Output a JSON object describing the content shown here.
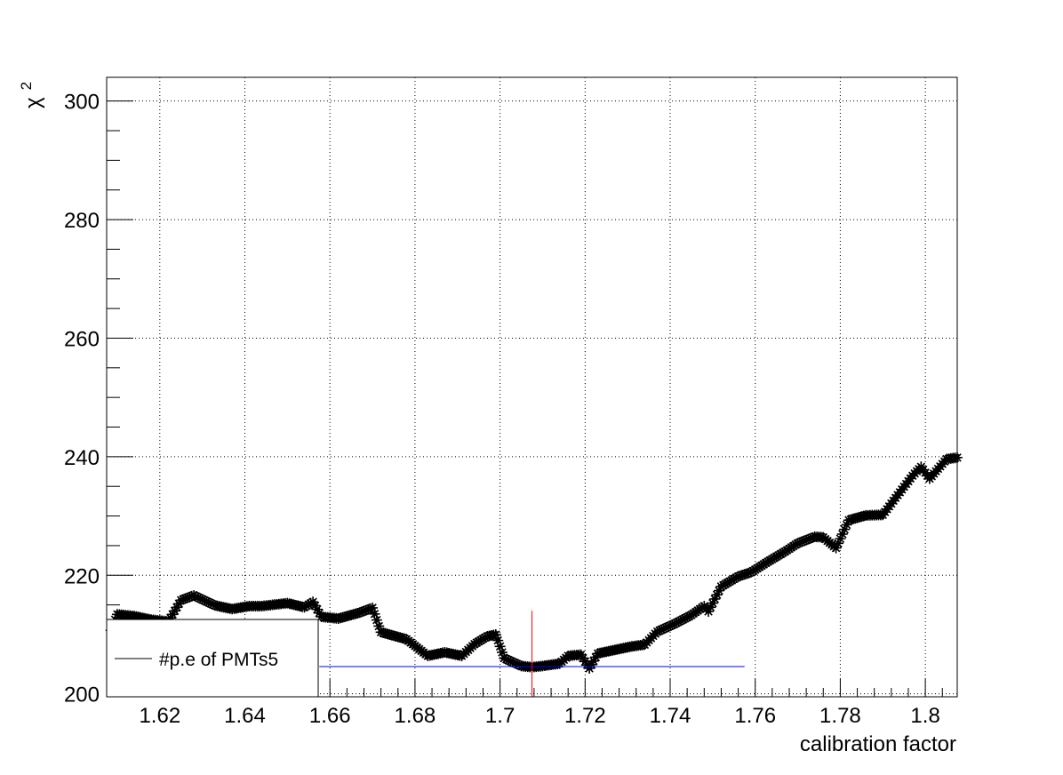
{
  "chart_data": {
    "type": "scatter",
    "title": "",
    "xlabel": "calibration factor",
    "ylabel_symbol": "χ",
    "ylabel_exponent": "2",
    "xlim": [
      1.6075,
      1.8075
    ],
    "ylim": [
      199.5,
      304.0
    ],
    "x_ticks": [
      "1.62",
      "1.64",
      "1.66",
      "1.68",
      "1.7",
      "1.72",
      "1.74",
      "1.76",
      "1.78",
      "1.8"
    ],
    "x_tick_values": [
      1.62,
      1.64,
      1.66,
      1.68,
      1.7,
      1.72,
      1.74,
      1.76,
      1.78,
      1.8
    ],
    "y_ticks": [
      "200",
      "220",
      "240",
      "260",
      "280",
      "300"
    ],
    "y_tick_values": [
      200,
      220,
      240,
      260,
      280,
      300
    ],
    "grid": true,
    "marker": "asterisk",
    "marker_color": "#000000",
    "series": [
      {
        "anchors": [
          [
            1.6085,
            210.7
          ],
          [
            1.61,
            213.4
          ],
          [
            1.614,
            213.1
          ],
          [
            1.618,
            212.5
          ],
          [
            1.622,
            212.2
          ],
          [
            1.625,
            215.8
          ],
          [
            1.628,
            216.6
          ],
          [
            1.633,
            214.9
          ],
          [
            1.637,
            214.3
          ],
          [
            1.641,
            214.8
          ],
          [
            1.644,
            214.8
          ],
          [
            1.65,
            215.3
          ],
          [
            1.654,
            214.6
          ],
          [
            1.656,
            215.5
          ],
          [
            1.658,
            213.0
          ],
          [
            1.662,
            212.7
          ],
          [
            1.667,
            213.7
          ],
          [
            1.67,
            214.5
          ],
          [
            1.672,
            210.4
          ],
          [
            1.678,
            209.2
          ],
          [
            1.683,
            206.4
          ],
          [
            1.687,
            207.0
          ],
          [
            1.691,
            206.4
          ],
          [
            1.694,
            208.4
          ],
          [
            1.697,
            209.7
          ],
          [
            1.699,
            210.0
          ],
          [
            1.701,
            206.0
          ],
          [
            1.705,
            204.7
          ],
          [
            1.7075,
            204.5
          ],
          [
            1.71,
            204.7
          ],
          [
            1.714,
            205.1
          ],
          [
            1.716,
            206.4
          ],
          [
            1.719,
            206.6
          ],
          [
            1.721,
            204.3
          ],
          [
            1.723,
            206.8
          ],
          [
            1.727,
            207.4
          ],
          [
            1.731,
            208.0
          ],
          [
            1.734,
            208.3
          ],
          [
            1.737,
            210.5
          ],
          [
            1.741,
            211.8
          ],
          [
            1.745,
            213.3
          ],
          [
            1.748,
            214.8
          ],
          [
            1.749,
            213.9
          ],
          [
            1.752,
            218.1
          ],
          [
            1.756,
            219.8
          ],
          [
            1.759,
            220.5
          ],
          [
            1.763,
            222.3
          ],
          [
            1.767,
            224.0
          ],
          [
            1.77,
            225.4
          ],
          [
            1.774,
            226.5
          ],
          [
            1.776,
            226.4
          ],
          [
            1.779,
            224.6
          ],
          [
            1.782,
            229.3
          ],
          [
            1.786,
            230.1
          ],
          [
            1.79,
            230.2
          ],
          [
            1.794,
            234.0
          ],
          [
            1.797,
            236.8
          ],
          [
            1.799,
            238.3
          ],
          [
            1.801,
            236.3
          ],
          [
            1.805,
            239.6
          ],
          [
            1.808,
            239.9
          ],
          [
            1.809,
            242.6
          ]
        ]
      }
    ],
    "min_marker": {
      "x": 1.7075,
      "y": 204.6,
      "vertical_y_range": [
        199.5,
        214.0
      ],
      "horizontal_x_range": [
        1.6575,
        1.7575
      ],
      "vertical_color": "#ff0000",
      "horizontal_color": "#0000ff"
    },
    "legend": {
      "entries": [
        "#p.e of PMTs5"
      ],
      "position": "bottom-left"
    }
  }
}
